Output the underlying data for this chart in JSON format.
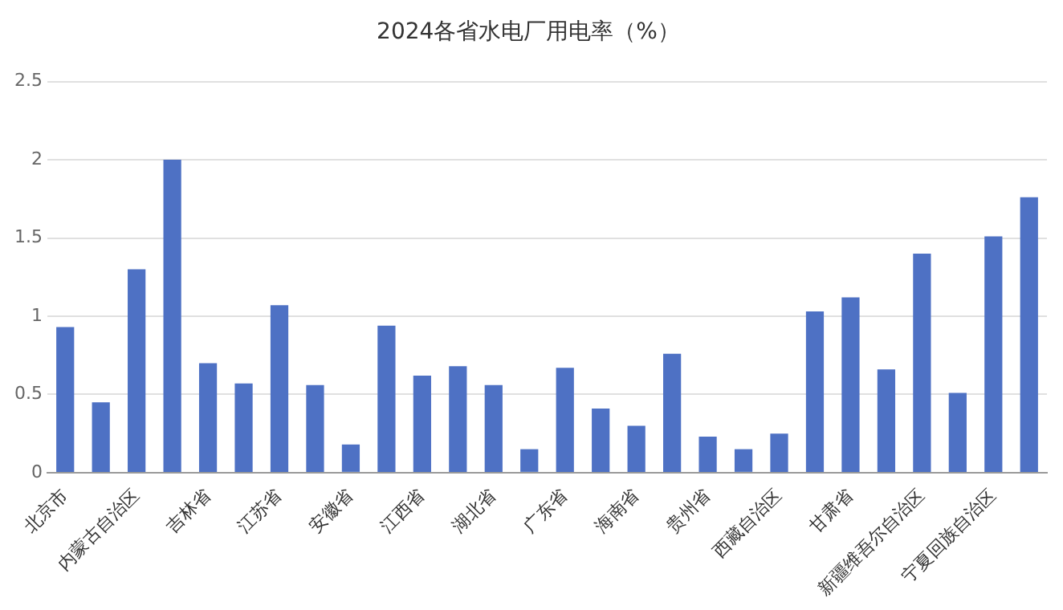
{
  "chart_data": {
    "type": "bar",
    "title": "2024各省水电厂用电率（%）",
    "categories": [
      "北京市",
      null,
      "内蒙古自治区",
      null,
      "吉林省",
      null,
      "江苏省",
      null,
      "安徽省",
      null,
      "江西省",
      null,
      "湖北省",
      null,
      "广东省",
      null,
      "海南省",
      null,
      "贵州省",
      null,
      "西藏自治区",
      null,
      "甘肃省",
      null,
      "新疆维吾尔自治区",
      null,
      "宁夏回族自治区",
      null
    ],
    "values": [
      0.93,
      0.45,
      1.3,
      2.0,
      0.7,
      0.57,
      1.07,
      0.56,
      0.18,
      0.94,
      0.62,
      0.68,
      0.56,
      0.15,
      0.67,
      0.41,
      0.3,
      0.76,
      0.23,
      0.15,
      0.25,
      1.03,
      1.12,
      0.66,
      1.4,
      0.51,
      1.51,
      1.76
    ],
    "color": "#4e71c4",
    "ylim": [
      0,
      2.5
    ],
    "yticks": [
      0,
      0.5,
      1,
      1.5,
      2,
      2.5
    ],
    "grid": "y"
  }
}
